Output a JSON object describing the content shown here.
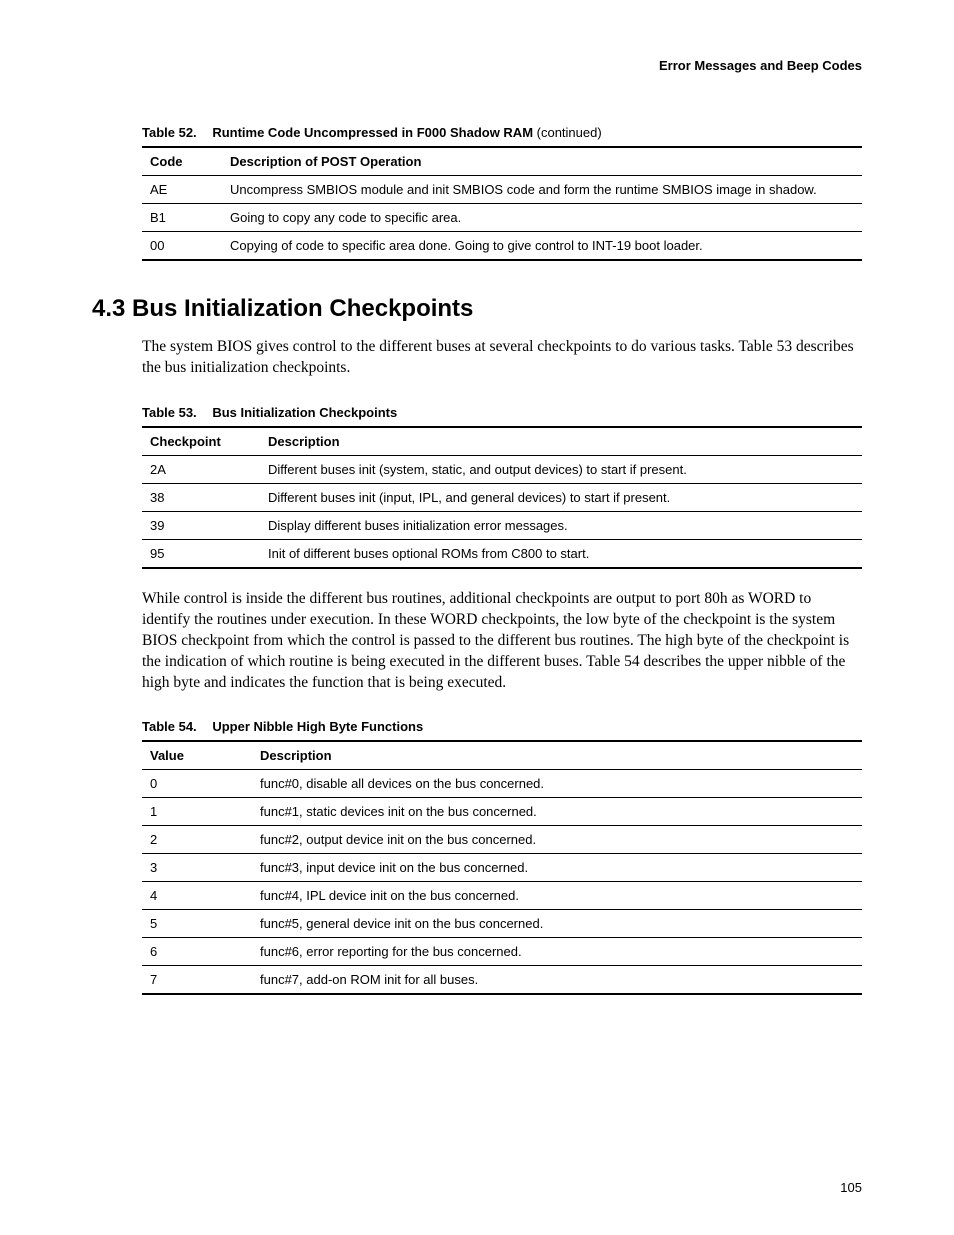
{
  "header": {
    "section_title": "Error Messages and Beep Codes"
  },
  "table52": {
    "caption_label": "Table 52.",
    "caption_title": "Runtime Code Uncompressed in F000 Shadow RAM",
    "caption_cont": " (continued)",
    "col1_header": "Code",
    "col2_header": "Description of POST Operation",
    "rows": [
      {
        "code": "AE",
        "desc": "Uncompress SMBIOS module and init SMBIOS code and form the runtime SMBIOS image in shadow."
      },
      {
        "code": "B1",
        "desc": "Going to copy any code to specific area."
      },
      {
        "code": "00",
        "desc": "Copying of code to specific area done.  Going to give control to INT-19 boot loader."
      }
    ]
  },
  "section": {
    "heading": "4.3  Bus Initialization Checkpoints",
    "para1": "The system BIOS gives control to the different buses at several checkpoints to do various tasks.  Table 53 describes the bus initialization checkpoints.",
    "para2": "While control is inside the different bus routines, additional checkpoints are output to port 80h as WORD to identify the routines under execution.  In these WORD checkpoints, the low byte of the checkpoint is the system BIOS checkpoint from which the control is passed to the different bus routines.  The high byte of the checkpoint is the indication of which routine is being executed in the different buses.  Table 54 describes the upper nibble of the high byte and indicates the function that is being executed."
  },
  "table53": {
    "caption_label": "Table 53.",
    "caption_title": "Bus Initialization Checkpoints",
    "col1_header": "Checkpoint",
    "col2_header": "Description",
    "rows": [
      {
        "code": "2A",
        "desc": "Different buses init (system, static, and output devices) to start if present."
      },
      {
        "code": "38",
        "desc": "Different buses init (input, IPL, and general devices) to start if present."
      },
      {
        "code": "39",
        "desc": "Display different buses initialization error messages."
      },
      {
        "code": "95",
        "desc": "Init of different buses optional ROMs from C800 to start."
      }
    ]
  },
  "table54": {
    "caption_label": "Table 54.",
    "caption_title": "Upper Nibble High Byte Functions",
    "col1_header": "Value",
    "col2_header": "Description",
    "rows": [
      {
        "code": "0",
        "desc": "func#0, disable all devices on the bus concerned."
      },
      {
        "code": "1",
        "desc": "func#1, static devices init on the bus concerned."
      },
      {
        "code": "2",
        "desc": "func#2, output device init on the bus concerned."
      },
      {
        "code": "3",
        "desc": "func#3, input device init on the bus concerned."
      },
      {
        "code": "4",
        "desc": "func#4, IPL device init on the bus concerned."
      },
      {
        "code": "5",
        "desc": "func#5, general device init on the bus concerned."
      },
      {
        "code": "6",
        "desc": "func#6, error reporting for the bus concerned."
      },
      {
        "code": "7",
        "desc": "func#7, add-on ROM init for all buses."
      }
    ]
  },
  "page_number": "105"
}
